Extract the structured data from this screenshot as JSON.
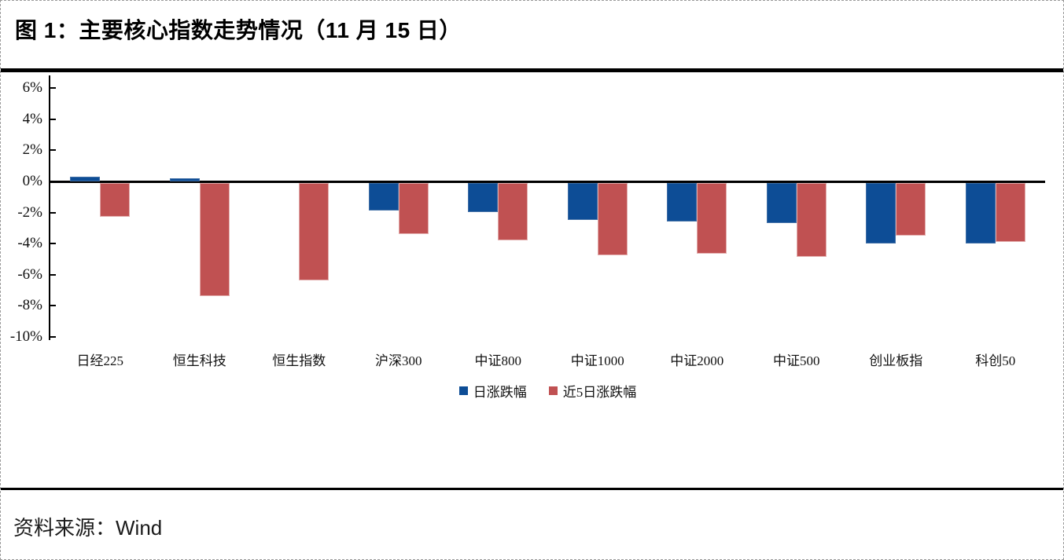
{
  "figure": {
    "title": "图 1：主要核心指数走势情况（11 月 15 日）",
    "source_label": "资料来源：Wind"
  },
  "chart_data": {
    "type": "bar",
    "title": "主要核心指数走势情况（11 月 15 日）",
    "categories": [
      "日经225",
      "恒生科技",
      "恒生指数",
      "沪深300",
      "中证800",
      "中证1000",
      "中证2000",
      "中证500",
      "创业板指",
      "科创50"
    ],
    "series": [
      {
        "name": "日涨跌幅",
        "color": "#0D4D96",
        "values": [
          0.3,
          0.2,
          0.0,
          -1.8,
          -1.9,
          -2.4,
          -2.5,
          -2.6,
          -3.9,
          -3.9
        ]
      },
      {
        "name": "近5日涨跌幅",
        "color": "#C05152",
        "values": [
          -2.2,
          -7.3,
          -6.3,
          -3.3,
          -3.7,
          -4.7,
          -4.6,
          -4.8,
          -3.4,
          -3.8
        ]
      }
    ],
    "xlabel": "",
    "ylabel": "",
    "unit": "%",
    "y_ticks": [
      "6%",
      "4%",
      "2%",
      "0%",
      "-2%",
      "-4%",
      "-6%",
      "-8%",
      "-10%"
    ],
    "y_tick_values": [
      6,
      4,
      2,
      0,
      -2,
      -4,
      -6,
      -8,
      -10
    ],
    "ylim": [
      -10.2,
      6.8
    ],
    "grid": false,
    "legend_position": "bottom"
  }
}
